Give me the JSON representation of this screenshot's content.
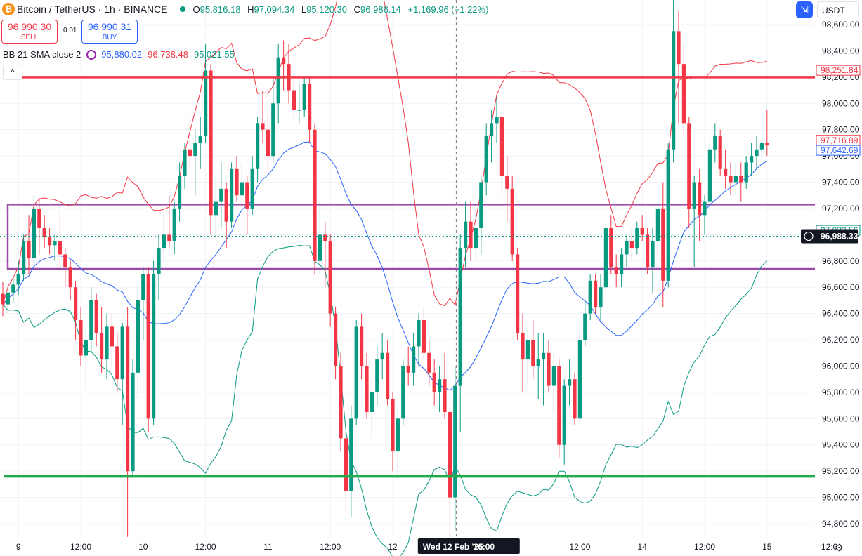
{
  "header": {
    "title": "Bitcoin / TetherUS · 1h · BINANCE",
    "open_label": "O",
    "open": "95,816.18",
    "high_label": "H",
    "high": "97,094.34",
    "low_label": "L",
    "low": "95,120.30",
    "close_label": "C",
    "close": "96,986.14",
    "change": "+1,169.96 (+1.22%)"
  },
  "trade": {
    "sell_price": "96,990.30",
    "sell_label": "SELL",
    "spread": "0.01",
    "buy_price": "96,990.31",
    "buy_label": "BUY"
  },
  "indicator": {
    "name": "BB 21 SMA close 2",
    "basis": "95,880.02",
    "upper": "96,738.48",
    "lower": "95,021.55",
    "basis_color": "#2962ff",
    "upper_color": "#f23645",
    "lower_color": "#089981"
  },
  "toolbar": {
    "collapse_glyph": "^",
    "currency": "USDT",
    "settings_glyph": "⚙"
  },
  "chart_data": {
    "type": "candlestick",
    "ylim": [
      94700,
      98800
    ],
    "y_ticks": [
      94800,
      95000,
      95200,
      95400,
      95600,
      95800,
      96000,
      96200,
      96400,
      96600,
      96800,
      97000,
      97200,
      97400,
      97600,
      97800,
      98000,
      98200,
      98400,
      98600
    ],
    "y_tick_labels": [
      "94,800.00",
      "95,000.00",
      "95,200.00",
      "95,400.00",
      "95,600.00",
      "95,800.00",
      "96,000.00",
      "96,200.00",
      "96,400.00",
      "96,600.00",
      "96,800.00",
      "97,000.00",
      "97,200.00",
      "97,400.00",
      "97,600.00",
      "97,800.00",
      "98,000.00",
      "98,200.00",
      "98,400.00",
      "98,600.00"
    ],
    "x_labels": [
      {
        "label": "9",
        "bar": 3
      },
      {
        "label": "12:00",
        "bar": 15
      },
      {
        "label": "10",
        "bar": 27
      },
      {
        "label": "12:00",
        "bar": 39
      },
      {
        "label": "11",
        "bar": 51
      },
      {
        "label": "12:00",
        "bar": 63
      },
      {
        "label": "12",
        "bar": 75
      },
      {
        "label": "Wed 12 Feb '25",
        "bar": 87,
        "highlight": true
      },
      {
        "label": "16:00",
        "bar": 91,
        "highlight": true
      },
      {
        "label": "12:00",
        "bar": 111
      },
      {
        "label": "14",
        "bar": 123
      },
      {
        "label": "12:00",
        "bar": 135
      },
      {
        "label": "15",
        "bar": 147
      },
      {
        "label": "12:0",
        "bar": 159
      }
    ],
    "bars_visible": 163,
    "ohlc": [
      [
        96550,
        96640,
        96380,
        96470
      ],
      [
        96470,
        96600,
        96400,
        96560
      ],
      [
        96560,
        96680,
        96480,
        96620
      ],
      [
        96620,
        96800,
        96540,
        96700
      ],
      [
        96700,
        97000,
        96650,
        96950
      ],
      [
        96950,
        97150,
        96700,
        96820
      ],
      [
        96820,
        97300,
        96780,
        97200
      ],
      [
        97200,
        97280,
        96850,
        97050
      ],
      [
        97050,
        97150,
        96900,
        96980
      ],
      [
        96980,
        97050,
        96850,
        96920
      ],
      [
        96920,
        97000,
        96800,
        96950
      ],
      [
        96950,
        97200,
        96700,
        96850
      ],
      [
        96850,
        96900,
        96600,
        96750
      ],
      [
        96750,
        96800,
        96500,
        96600
      ],
      [
        96600,
        96650,
        96200,
        96350
      ],
      [
        96350,
        96450,
        96000,
        96080
      ],
      [
        96080,
        96300,
        95820,
        96200
      ],
      [
        96200,
        96600,
        96100,
        96500
      ],
      [
        96500,
        96550,
        96150,
        96250
      ],
      [
        96250,
        96450,
        95950,
        96050
      ],
      [
        96050,
        96400,
        95900,
        96300
      ],
      [
        96300,
        96400,
        96000,
        96150
      ],
      [
        96150,
        96250,
        95800,
        95900
      ],
      [
        95900,
        96330,
        95550,
        96300
      ],
      [
        96300,
        96450,
        94700,
        95200
      ],
      [
        95200,
        96050,
        95150,
        95950
      ],
      [
        95950,
        96600,
        95750,
        96500
      ],
      [
        96500,
        96750,
        96200,
        96700
      ],
      [
        96700,
        96750,
        95500,
        95600
      ],
      [
        95600,
        96800,
        95550,
        96700
      ],
      [
        96700,
        97000,
        96500,
        96900
      ],
      [
        96900,
        97150,
        96800,
        97000
      ],
      [
        97000,
        97300,
        96900,
        96950
      ],
      [
        96950,
        97250,
        96850,
        97200
      ],
      [
        97200,
        97550,
        97100,
        97450
      ],
      [
        97450,
        97700,
        97350,
        97650
      ],
      [
        97650,
        97900,
        97500,
        97600
      ],
      [
        97600,
        97800,
        97300,
        97700
      ],
      [
        97700,
        97900,
        97500,
        97750
      ],
      [
        97750,
        98450,
        97700,
        98250
      ],
      [
        98250,
        98300,
        97000,
        97150
      ],
      [
        97150,
        97450,
        97000,
        97250
      ],
      [
        97250,
        97550,
        97050,
        97350
      ],
      [
        97350,
        97400,
        96900,
        97100
      ],
      [
        97100,
        97550,
        97050,
        97500
      ],
      [
        97500,
        97600,
        97250,
        97300
      ],
      [
        97300,
        97550,
        97200,
        97400
      ],
      [
        97400,
        97450,
        97000,
        97200
      ],
      [
        97200,
        97600,
        97150,
        97500
      ],
      [
        97500,
        97900,
        97400,
        97850
      ],
      [
        97850,
        98100,
        97700,
        97800
      ],
      [
        97800,
        97900,
        97500,
        97600
      ],
      [
        97600,
        98200,
        97550,
        98000
      ],
      [
        98000,
        98450,
        97850,
        98350
      ],
      [
        98350,
        98480,
        98100,
        98300
      ],
      [
        98300,
        98450,
        98000,
        98100
      ],
      [
        98100,
        98250,
        97900,
        97950
      ],
      [
        97950,
        98150,
        97850,
        97950
      ],
      [
        97950,
        98200,
        97900,
        98150
      ],
      [
        98150,
        98200,
        97700,
        97800
      ],
      [
        97800,
        97850,
        96700,
        96800
      ],
      [
        96800,
        97250,
        96700,
        97000
      ],
      [
        97000,
        97100,
        96600,
        96950
      ],
      [
        96950,
        97000,
        96300,
        96400
      ],
      [
        96400,
        96450,
        95900,
        96000
      ],
      [
        96000,
        96100,
        95350,
        95450
      ],
      [
        95450,
        95500,
        94900,
        95050
      ],
      [
        95050,
        95700,
        94850,
        95600
      ],
      [
        95600,
        96350,
        95550,
        96300
      ],
      [
        96300,
        96400,
        95900,
        96000
      ],
      [
        96000,
        96100,
        95600,
        95650
      ],
      [
        95650,
        95900,
        95450,
        95800
      ],
      [
        95800,
        96150,
        95700,
        96050
      ],
      [
        96050,
        96250,
        95900,
        96100
      ],
      [
        96100,
        96200,
        95700,
        95750
      ],
      [
        95750,
        95800,
        95200,
        95350
      ],
      [
        95350,
        95700,
        95150,
        95600
      ],
      [
        95600,
        96050,
        95550,
        96000
      ],
      [
        96000,
        96150,
        95850,
        95950
      ],
      [
        95950,
        96250,
        95850,
        96150
      ],
      [
        96150,
        96400,
        96000,
        96350
      ],
      [
        96350,
        96450,
        96050,
        96100
      ],
      [
        96100,
        96200,
        95850,
        95950
      ],
      [
        95950,
        96050,
        95700,
        95800
      ],
      [
        95800,
        96000,
        95650,
        95900
      ],
      [
        95900,
        96100,
        95600,
        95650
      ],
      [
        95650,
        95700,
        94700,
        95000
      ],
      [
        95000,
        96000,
        94750,
        95850
      ],
      [
        95850,
        97000,
        95500,
        96900
      ],
      [
        96900,
        97250,
        96750,
        97100
      ],
      [
        97100,
        97250,
        96800,
        96900
      ],
      [
        96900,
        97200,
        96800,
        97050
      ],
      [
        97050,
        97450,
        96850,
        97400
      ],
      [
        97400,
        97850,
        97300,
        97750
      ],
      [
        97750,
        97950,
        97550,
        97850
      ],
      [
        97850,
        98050,
        97700,
        97900
      ],
      [
        97900,
        97950,
        97300,
        97450
      ],
      [
        97450,
        97600,
        97100,
        97350
      ],
      [
        97350,
        97450,
        96800,
        96850
      ],
      [
        96850,
        96900,
        96200,
        96250
      ],
      [
        96250,
        96400,
        95800,
        96050
      ],
      [
        96050,
        96300,
        95850,
        96200
      ],
      [
        96200,
        96350,
        95900,
        96000
      ],
      [
        96000,
        96250,
        95750,
        96050
      ],
      [
        96050,
        96250,
        95700,
        96100
      ],
      [
        96100,
        96200,
        95800,
        95850
      ],
      [
        95850,
        96100,
        95650,
        96000
      ],
      [
        96000,
        96050,
        95300,
        95400
      ],
      [
        95400,
        95900,
        95250,
        95850
      ],
      [
        95850,
        96050,
        95700,
        95900
      ],
      [
        95900,
        95950,
        95550,
        95600
      ],
      [
        95600,
        96250,
        95550,
        96200
      ],
      [
        96200,
        96500,
        96150,
        96400
      ],
      [
        96400,
        96700,
        96350,
        96650
      ],
      [
        96650,
        96700,
        96400,
        96450
      ],
      [
        96450,
        96700,
        96350,
        96600
      ],
      [
        96600,
        97100,
        96550,
        97050
      ],
      [
        97050,
        97150,
        96700,
        96750
      ],
      [
        96750,
        96850,
        96600,
        96700
      ],
      [
        96700,
        96900,
        96600,
        96850
      ],
      [
        96850,
        97000,
        96750,
        96950
      ],
      [
        96950,
        97050,
        96800,
        96900
      ],
      [
        96900,
        97100,
        96850,
        97050
      ],
      [
        97050,
        97150,
        96950,
        97000
      ],
      [
        97000,
        97050,
        96700,
        96750
      ],
      [
        96750,
        97050,
        96550,
        96950
      ],
      [
        96950,
        97250,
        96850,
        97200
      ],
      [
        97200,
        97400,
        96450,
        96650
      ],
      [
        96650,
        97700,
        96600,
        97650
      ],
      [
        97650,
        98800,
        97550,
        98550
      ],
      [
        98550,
        98700,
        97850,
        98300
      ],
      [
        98300,
        98450,
        97750,
        97850
      ],
      [
        97850,
        97900,
        97050,
        97200
      ],
      [
        97200,
        97450,
        96750,
        97400
      ],
      [
        97400,
        97500,
        96950,
        97150
      ],
      [
        97150,
        97300,
        97000,
        97250
      ],
      [
        97250,
        97700,
        97200,
        97650
      ],
      [
        97650,
        97850,
        97550,
        97750
      ],
      [
        97750,
        97800,
        97450,
        97500
      ],
      [
        97500,
        97650,
        97350,
        97450
      ],
      [
        97450,
        97550,
        97300,
        97400
      ],
      [
        97400,
        97550,
        97300,
        97450
      ],
      [
        97450,
        97550,
        97250,
        97400
      ],
      [
        97400,
        97600,
        97350,
        97550
      ],
      [
        97550,
        97700,
        97450,
        97600
      ],
      [
        97600,
        97750,
        97500,
        97650
      ],
      [
        97650,
        97720,
        97550,
        97700
      ],
      [
        97700,
        97950,
        97600,
        97680
      ]
    ],
    "hlines": [
      {
        "value": 98200,
        "color": "#f23645"
      },
      {
        "value": 95160,
        "color": "#22ab4b"
      }
    ],
    "zone": {
      "from": 96740,
      "to": 97230,
      "color": "#9c4aa8"
    },
    "price_tags": [
      {
        "value": 98251.84,
        "label": "98,251.84",
        "color": "#f23645",
        "style": "outline"
      },
      {
        "value": 97716.89,
        "label": "97,716.89",
        "color": "#f23645",
        "style": "outline"
      },
      {
        "value": 97642.69,
        "label": "97,642.69",
        "color": "#2962ff",
        "style": "outline"
      },
      {
        "value": 97033.56,
        "label": "97,033.56",
        "color": "#089981",
        "style": "outline"
      },
      {
        "value": 96988.33,
        "label": "96,988.33",
        "color": "#131722",
        "style": "solid"
      }
    ],
    "last_price": 96988.33,
    "crosshair_bar": 91
  }
}
